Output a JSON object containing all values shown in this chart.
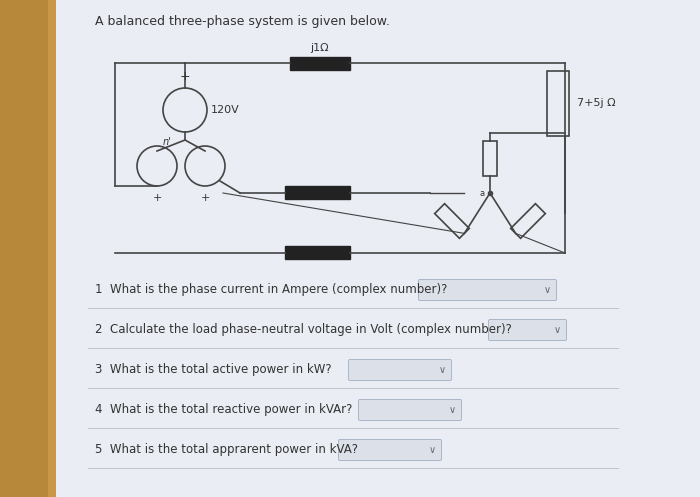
{
  "title": "A balanced three-phase system is given below.",
  "title_fontsize": 9,
  "bg_left_color": "#c8a060",
  "bg_right_color": "#e8eaf0",
  "page_color": "#eaedf3",
  "circuit_label_impedance": "j1Ω",
  "circuit_label_voltage": "120V",
  "circuit_label_load": "7+5j Ω",
  "circuit_label_n": "n",
  "questions": [
    "1  What is the phase current in Ampere (complex number)?",
    "2  Calculate the load phase-neutral voltage in Volt (complex number)?",
    "3  What is the total active power in kW?",
    "4  What is the total reactive power in kVAr?",
    "5  What is the total apprarent power in kVA?"
  ],
  "line_color": "#444444",
  "box_color": "#222222",
  "text_color": "#333333",
  "dropdown_color": "#dce0e8",
  "sep_color": "#b8bcc8"
}
